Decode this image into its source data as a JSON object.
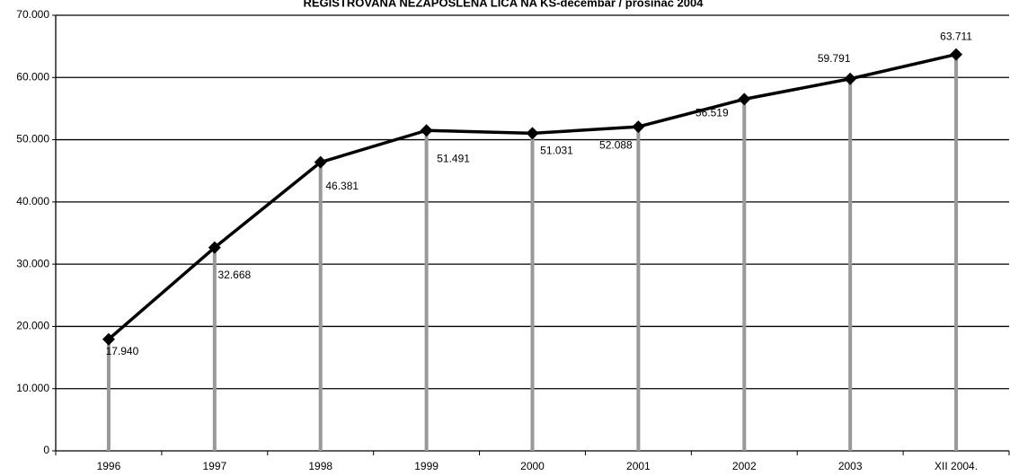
{
  "chart_data": {
    "type": "line",
    "title": "REGISTROVANA NEZAPOSLENA LICA NA KS-decembar / prosinac 2004",
    "categories": [
      "1996",
      "1997",
      "1998",
      "1999",
      "2000",
      "2001",
      "2002",
      "2003",
      "XII 2004."
    ],
    "values": [
      17940,
      32668,
      46381,
      51491,
      51031,
      52088,
      56519,
      59791,
      63711
    ],
    "value_labels": [
      "17.940",
      "32.668",
      "46.381",
      "51.491",
      "51.031",
      "52.088",
      "56.519",
      "59.791",
      "63.711"
    ],
    "color": "#000000",
    "drop_line_color": "#999999",
    "ylim": [
      0,
      70000
    ],
    "yticks": [
      0,
      {
        "value": 10000,
        "label": "10.000"
      },
      {
        "value": 20000,
        "label": "20.000"
      },
      {
        "value": 30000,
        "label": "30.000"
      },
      {
        "value": 40000,
        "label": "40.000"
      },
      {
        "value": 50000,
        "label": "50.000"
      },
      {
        "value": 60000,
        "label": "60.000"
      },
      {
        "value": 70000,
        "label": "70.000"
      }
    ],
    "grid": true
  }
}
